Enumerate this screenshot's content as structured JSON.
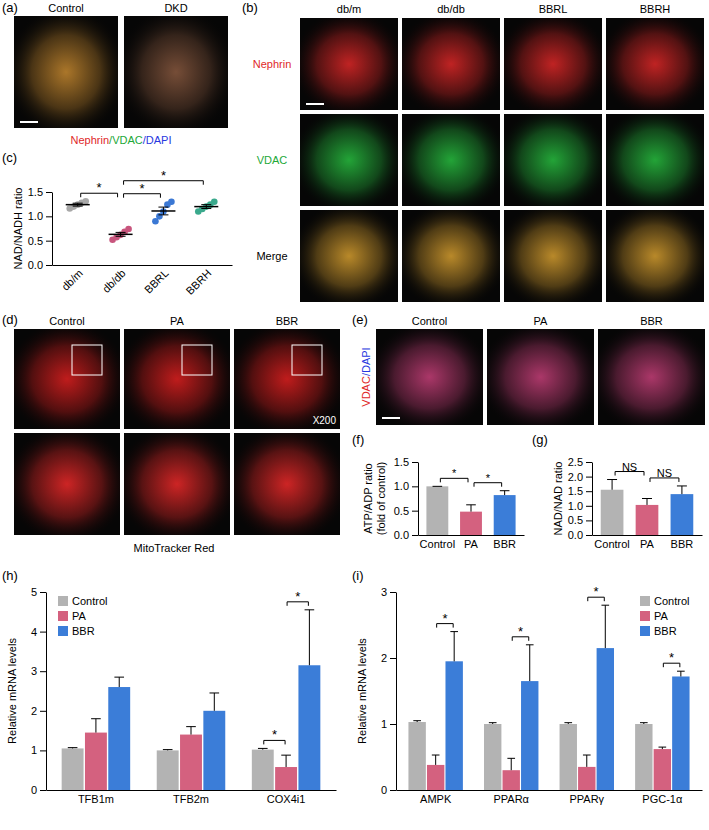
{
  "chart_data": [
    {
      "panel": "(c)",
      "type": "scatter",
      "y_label": "NAD/NADH ratio",
      "categories": [
        "db/m",
        "db/db",
        "BBRL",
        "BBRH"
      ],
      "points": [
        [
          1.16,
          1.2,
          1.24,
          1.28,
          1.31
        ],
        [
          0.52,
          0.57,
          0.62,
          0.68,
          0.74
        ],
        [
          0.9,
          1.0,
          1.1,
          1.24,
          1.3
        ],
        [
          1.1,
          1.15,
          1.2,
          1.24,
          1.3
        ]
      ],
      "values": [
        1.24,
        0.63,
        1.11,
        1.2
      ],
      "error": [
        0.03,
        0.04,
        0.08,
        0.04
      ],
      "colors": [
        "#a8a8a8",
        "#c8557d",
        "#3b78d4",
        "#3aa98c"
      ],
      "ylim": [
        0,
        1.5
      ],
      "yticks": [
        {
          "value": 0,
          "label": "0.0"
        },
        0.5,
        {
          "value": 1,
          "label": "1.0"
        },
        1.5
      ],
      "annotations": [
        {
          "groups": [
            "db/m",
            "db/db"
          ],
          "label": "*"
        },
        {
          "groups": [
            "db/db",
            "BBRL"
          ],
          "label": "*"
        },
        {
          "groups": [
            "db/db",
            "BBRH"
          ],
          "label": "*"
        }
      ]
    },
    {
      "panel": "(f)",
      "type": "bar",
      "y_label": [
        "ATP/ADP ratio",
        "(fold of control)"
      ],
      "categories": [
        "Control",
        "PA",
        "BBR"
      ],
      "values": [
        1.0,
        0.48,
        0.82
      ],
      "error": [
        0,
        0.14,
        0.09
      ],
      "colors": [
        "#b3b3b3",
        "#d4617f",
        "#3b7dd8"
      ],
      "ylim": [
        0,
        1.5
      ],
      "yticks": [
        {
          "value": 0,
          "label": "0.0"
        },
        0.5,
        {
          "value": 1,
          "label": "1.0"
        },
        1.5
      ],
      "annotations": [
        {
          "groups": [
            "Control",
            "PA"
          ],
          "label": "*"
        },
        {
          "groups": [
            "PA",
            "BBR"
          ],
          "label": "*"
        }
      ]
    },
    {
      "panel": "(g)",
      "type": "bar",
      "y_label": "NAD/NAD ratio",
      "categories": [
        "Control",
        "PA",
        "BBR"
      ],
      "values": [
        1.55,
        1.03,
        1.4
      ],
      "error": [
        0.35,
        0.22,
        0.28
      ],
      "colors": [
        "#b3b3b3",
        "#d4617f",
        "#3b7dd8"
      ],
      "ylim": [
        0,
        2.5
      ],
      "yticks": [
        {
          "value": 0,
          "label": "0.0"
        },
        0.5,
        {
          "value": 1,
          "label": "1.0"
        },
        1.5,
        {
          "value": 2,
          "label": "2.0"
        },
        2.5
      ],
      "annotations": [
        {
          "groups": [
            "Control",
            "PA"
          ],
          "label": "NS"
        },
        {
          "groups": [
            "PA",
            "BBR"
          ],
          "label": "NS"
        }
      ]
    },
    {
      "panel": "(h)",
      "type": "bar",
      "y_label": "Relative mRNA levels",
      "categories": [
        "TFB1m",
        "TFB2m",
        "COX4i1"
      ],
      "series": [
        {
          "name": "Control",
          "color": "#b3b3b3",
          "values": [
            1.05,
            1.0,
            1.02
          ],
          "error": [
            0.02,
            0.02,
            0.03
          ]
        },
        {
          "name": "PA",
          "color": "#d4617f",
          "values": [
            1.45,
            1.4,
            0.58
          ],
          "error": [
            0.35,
            0.2,
            0.3
          ]
        },
        {
          "name": "BBR",
          "color": "#3b7dd8",
          "values": [
            2.6,
            2.0,
            3.15
          ],
          "error": [
            0.25,
            0.45,
            1.4
          ]
        }
      ],
      "ylim": [
        0,
        5
      ],
      "yticks": [
        0,
        1,
        2,
        3,
        4,
        5
      ],
      "legend": "top-left",
      "annotations": [
        {
          "category": "COX4i1",
          "series": [
            "Control",
            "PA"
          ],
          "label": "*"
        },
        {
          "category": "COX4i1",
          "series": [
            "PA",
            "BBR"
          ],
          "label": "*"
        }
      ]
    },
    {
      "panel": "(i)",
      "type": "bar",
      "y_label": "Relative mRNA levels",
      "categories": [
        "AMPK",
        "PPARα",
        "PPARγ",
        "PGC-1α"
      ],
      "series": [
        {
          "name": "Control",
          "color": "#b3b3b3",
          "values": [
            1.03,
            1.0,
            1.0,
            1.0
          ],
          "error": [
            0.02,
            0.02,
            0.02,
            0.02
          ]
        },
        {
          "name": "PA",
          "color": "#d4617f",
          "values": [
            0.38,
            0.3,
            0.35,
            0.62
          ],
          "error": [
            0.15,
            0.18,
            0.18,
            0.03
          ]
        },
        {
          "name": "BBR",
          "color": "#3b7dd8",
          "values": [
            1.95,
            1.65,
            2.15,
            1.72
          ],
          "error": [
            0.45,
            0.55,
            0.65,
            0.08
          ]
        }
      ],
      "ylim": [
        0,
        3
      ],
      "yticks": [
        0,
        1,
        2,
        3
      ],
      "legend": "top-right",
      "annotations": [
        {
          "category": "AMPK",
          "series": [
            "PA",
            "BBR"
          ],
          "label": "*"
        },
        {
          "category": "PPARα",
          "series": [
            "PA",
            "BBR"
          ],
          "label": "*"
        },
        {
          "category": "PPARγ",
          "series": [
            "PA",
            "BBR"
          ],
          "label": "*"
        },
        {
          "category": "PGC-1α",
          "series": [
            "PA",
            "BBR"
          ],
          "label": "*"
        }
      ]
    }
  ],
  "images": {
    "a": {
      "panel": "(a)",
      "labels": [
        "Control",
        "DKD"
      ],
      "channels": [
        {
          "text": "Nephrin",
          "color": "#e02828"
        },
        {
          "text": "/VDAC",
          "color": "#22a838"
        },
        {
          "text": "/DAPI",
          "color": "#2838e0"
        }
      ]
    },
    "b": {
      "panel": "(b)",
      "columns": [
        "db/m",
        "db/db",
        "BBRL",
        "BBRH"
      ],
      "rows": [
        {
          "label": "Nephrin",
          "color": "#e02828"
        },
        {
          "label": "VDAC",
          "color": "#22a838"
        },
        {
          "label": "Merge",
          "color": "#000000"
        }
      ]
    },
    "d": {
      "panel": "(d)",
      "labels": [
        "Control",
        "PA",
        "BBR"
      ],
      "magnification": "X200",
      "stain": "MitoTracker Red"
    },
    "e": {
      "panel": "(e)",
      "labels": [
        "Control",
        "PA",
        "BBR"
      ],
      "channels": [
        {
          "text": "VDAC",
          "color": "#e02828"
        },
        {
          "text": "/DAPI",
          "color": "#2838e0"
        }
      ]
    }
  }
}
